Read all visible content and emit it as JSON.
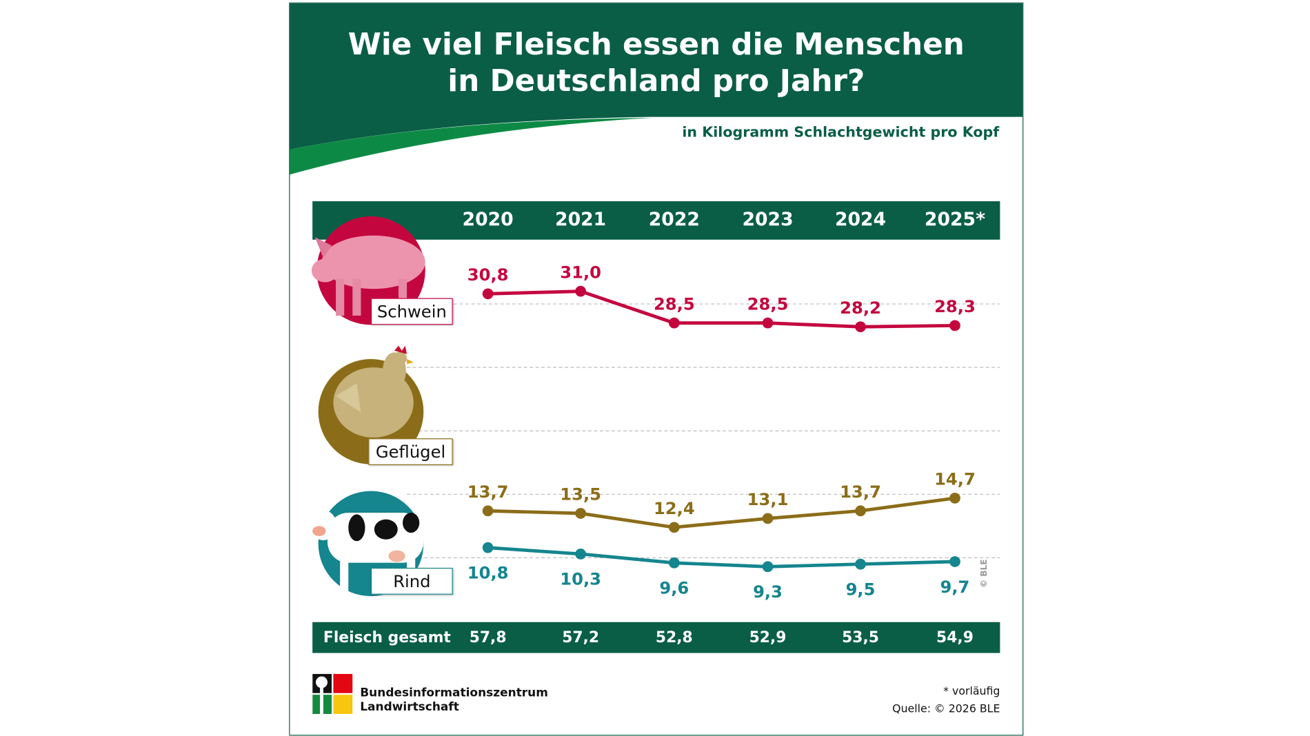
{
  "title_line1": "Wie viel Fleisch essen die Menschen",
  "title_line2": "in Deutschland pro Jahr?",
  "subtitle": "in Kilogramm Schlachtgewicht pro Kopf",
  "colors": {
    "brand_green": "#0a5e46",
    "schwein": "#c4063f",
    "gefluegel": "#8b6d19",
    "rind": "#15858e"
  },
  "chart_data": {
    "type": "line",
    "categories": [
      "2020",
      "2021",
      "2022",
      "2023",
      "2024",
      "2025*"
    ],
    "ylim": [
      10,
      30
    ],
    "grid": true,
    "series": [
      {
        "name": "Schwein",
        "values": [
          30.8,
          31.0,
          28.5,
          28.5,
          28.2,
          28.3
        ],
        "labels": [
          "30,8",
          "31,0",
          "28,5",
          "28,5",
          "28,2",
          "28,3"
        ]
      },
      {
        "name": "Geflügel",
        "values": [
          13.7,
          13.5,
          12.4,
          13.1,
          13.7,
          14.7
        ],
        "labels": [
          "13,7",
          "13,5",
          "12,4",
          "13,1",
          "13,7",
          "14,7"
        ]
      },
      {
        "name": "Rind",
        "values": [
          10.8,
          10.3,
          9.6,
          9.3,
          9.5,
          9.7
        ],
        "labels": [
          "10,8",
          "10,3",
          "9,6",
          "9,3",
          "9,5",
          "9,7"
        ]
      }
    ],
    "total": {
      "label": "Fleisch gesamt",
      "values": [
        "57,8",
        "57,2",
        "52,8",
        "52,9",
        "53,5",
        "54,9"
      ]
    }
  },
  "copyright_side": "© BLE",
  "footnote": "* vorläufig",
  "source": "Quelle: © 2026 BLE",
  "logo_line1": "Bundesinformationszentrum",
  "logo_line2": "Landwirtschaft"
}
